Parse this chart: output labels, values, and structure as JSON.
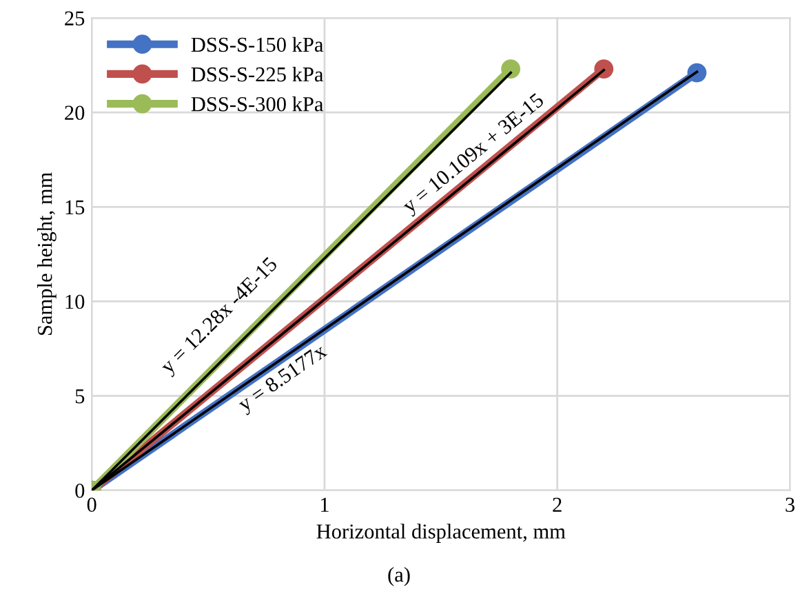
{
  "chart_data": {
    "type": "line",
    "xlabel": "Horizontal displacement, mm",
    "ylabel": "Sample height, mm",
    "xlim": [
      0,
      3
    ],
    "ylim": [
      0,
      25
    ],
    "xticks": [
      0,
      1,
      2,
      3
    ],
    "yticks": [
      0,
      5,
      10,
      15,
      20,
      25
    ],
    "grid": true,
    "legend": "top left",
    "marker": "circle",
    "line_style": "solid",
    "series": [
      {
        "name": "DSS-S-150 kPa",
        "color": "#4472c4",
        "x": [
          0,
          2.6
        ],
        "values": [
          0,
          22.1
        ]
      },
      {
        "name": "DSS-S-225 kPa",
        "color": "#c0504d",
        "x": [
          0,
          2.2
        ],
        "values": [
          0,
          22.3
        ]
      },
      {
        "name": "DSS-S-300 kPa",
        "color": "#9bbb59",
        "x": [
          0,
          1.8
        ],
        "values": [
          0,
          22.3
        ]
      },
      {
        "color": "#000000",
        "x": [
          0,
          2.6
        ],
        "values": [
          0,
          22.15
        ],
        "marker": "none"
      },
      {
        "color": "#000000",
        "x": [
          0,
          2.2
        ],
        "values": [
          0,
          22.24
        ],
        "marker": "none"
      },
      {
        "color": "#000000",
        "x": [
          0,
          1.8
        ],
        "values": [
          0,
          22.1
        ],
        "marker": "none"
      }
    ],
    "annotations": [
      {
        "text": "y = 8.5177x",
        "x": 0.78,
        "y": 6.64
      },
      {
        "text": "y = 10.109x + 3E-15",
        "x": 1.69,
        "y": 17.08
      },
      {
        "text": "y = 12.28x -4E-15",
        "x": 0.65,
        "y": 7.98
      },
      "(a)"
    ]
  }
}
